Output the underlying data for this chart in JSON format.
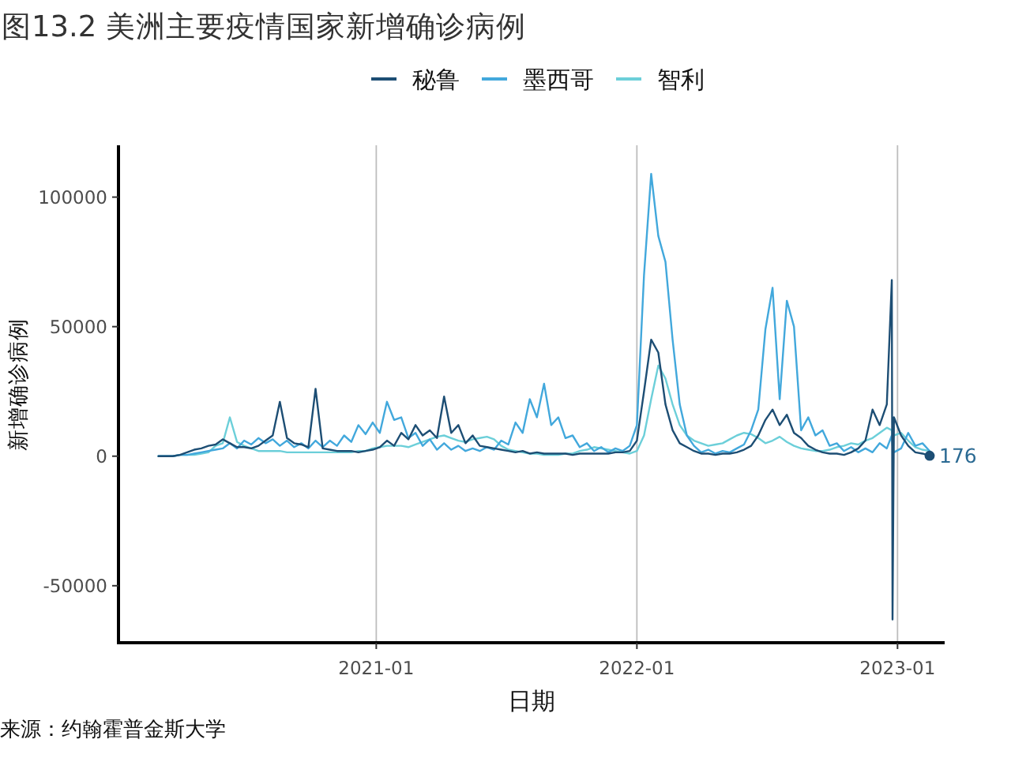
{
  "chart_data": {
    "type": "line",
    "title": "图13.2 美洲主要疫情国家新增确诊病例",
    "xlabel": "日期",
    "ylabel": "新增确诊病例",
    "x": [
      "2020-03-02",
      "2020-03-12",
      "2020-03-22",
      "2020-04-01",
      "2020-04-11",
      "2020-04-21",
      "2020-05-01",
      "2020-05-11",
      "2020-05-21",
      "2020-05-31",
      "2020-06-10",
      "2020-06-20",
      "2020-06-30",
      "2020-07-10",
      "2020-07-20",
      "2020-07-30",
      "2020-08-09",
      "2020-08-19",
      "2020-08-29",
      "2020-09-08",
      "2020-09-18",
      "2020-09-28",
      "2020-10-08",
      "2020-10-18",
      "2020-10-28",
      "2020-11-07",
      "2020-11-17",
      "2020-11-27",
      "2020-12-07",
      "2020-12-17",
      "2020-12-27",
      "2021-01-06",
      "2021-01-16",
      "2021-01-26",
      "2021-02-05",
      "2021-02-15",
      "2021-02-25",
      "2021-03-07",
      "2021-03-17",
      "2021-03-27",
      "2021-04-06",
      "2021-04-16",
      "2021-04-26",
      "2021-05-06",
      "2021-05-16",
      "2021-05-26",
      "2021-06-05",
      "2021-06-15",
      "2021-06-25",
      "2021-07-05",
      "2021-07-15",
      "2021-07-25",
      "2021-08-04",
      "2021-08-14",
      "2021-08-24",
      "2021-09-03",
      "2021-09-13",
      "2021-09-23",
      "2021-10-03",
      "2021-10-13",
      "2021-10-23",
      "2021-11-02",
      "2021-11-12",
      "2021-11-22",
      "2021-12-02",
      "2021-12-12",
      "2021-12-22",
      "2022-01-01",
      "2022-01-11",
      "2022-01-21",
      "2022-01-31",
      "2022-02-10",
      "2022-02-20",
      "2022-03-02",
      "2022-03-12",
      "2022-03-22",
      "2022-04-01",
      "2022-04-11",
      "2022-04-21",
      "2022-05-01",
      "2022-05-11",
      "2022-05-21",
      "2022-05-31",
      "2022-06-10",
      "2022-06-20",
      "2022-06-30",
      "2022-07-10",
      "2022-07-20",
      "2022-07-30",
      "2022-08-09",
      "2022-08-19",
      "2022-08-29",
      "2022-09-08",
      "2022-09-18",
      "2022-09-28",
      "2022-10-08",
      "2022-10-18",
      "2022-10-28",
      "2022-11-07",
      "2022-11-17",
      "2022-11-27",
      "2022-12-07",
      "2022-12-17",
      "2022-12-24",
      "2022-12-25",
      "2022-12-27",
      "2023-01-06",
      "2023-01-16",
      "2023-01-26",
      "2023-02-05",
      "2023-02-15"
    ],
    "series": [
      {
        "name": "秘鲁",
        "color": "#1d4e74",
        "values": [
          0,
          0,
          0,
          500,
          1500,
          2500,
          3000,
          4000,
          4500,
          6500,
          5000,
          3500,
          3500,
          3000,
          4000,
          6000,
          8000,
          21000,
          7000,
          5000,
          4500,
          3500,
          26000,
          3000,
          2500,
          2000,
          2000,
          2000,
          1500,
          2000,
          2500,
          3500,
          6000,
          4000,
          9000,
          6500,
          12000,
          8000,
          10000,
          7000,
          23000,
          9000,
          12000,
          5000,
          8000,
          4000,
          3500,
          3000,
          2500,
          2000,
          1500,
          2000,
          1000,
          1500,
          1000,
          1000,
          1000,
          1000,
          500,
          1000,
          1000,
          1000,
          1000,
          1000,
          1500,
          1500,
          2000,
          6000,
          25000,
          45000,
          40000,
          20000,
          10000,
          5000,
          3500,
          2000,
          1000,
          1000,
          500,
          1000,
          1000,
          1500,
          2500,
          4000,
          8000,
          14000,
          18000,
          12000,
          16000,
          9000,
          7000,
          4000,
          2500,
          1500,
          1000,
          1000,
          500,
          1500,
          3000,
          6000,
          18000,
          12000,
          20000,
          68000,
          -63000,
          15000,
          8000,
          4000,
          1500,
          1000,
          176
        ]
      },
      {
        "name": "墨西哥",
        "color": "#42a8dc",
        "values": [
          0,
          0,
          0,
          500,
          500,
          1000,
          1500,
          2000,
          2500,
          3000,
          5000,
          3000,
          6000,
          4500,
          7000,
          5000,
          6500,
          4000,
          6000,
          3500,
          5000,
          3000,
          6000,
          3500,
          6000,
          4000,
          8000,
          5500,
          12000,
          8500,
          13000,
          9000,
          21000,
          14000,
          15000,
          7000,
          9000,
          4000,
          6500,
          2500,
          5000,
          2500,
          4000,
          2000,
          3000,
          2000,
          3500,
          2500,
          6000,
          4500,
          13000,
          9000,
          22000,
          15000,
          28000,
          12000,
          15000,
          7000,
          8000,
          3500,
          5000,
          2000,
          3500,
          1500,
          3000,
          2000,
          4000,
          12000,
          70000,
          109000,
          85000,
          75000,
          45000,
          20000,
          8000,
          4000,
          1500,
          2500,
          1000,
          2000,
          1500,
          3000,
          4500,
          10000,
          18000,
          49000,
          65000,
          22000,
          60000,
          50000,
          10000,
          15000,
          8000,
          10000,
          4000,
          5000,
          2000,
          3500,
          1500,
          3000,
          1500,
          5000,
          3000,
          8000,
          4000,
          1500,
          3000,
          9000,
          4000,
          5000,
          2000
        ]
      },
      {
        "name": "智利",
        "color": "#6ccfd9",
        "values": [
          0,
          0,
          0,
          500,
          500,
          500,
          1000,
          1500,
          4000,
          5000,
          15000,
          5500,
          4000,
          3000,
          2000,
          2000,
          2000,
          2000,
          1500,
          1500,
          1500,
          1500,
          1500,
          1500,
          1500,
          1500,
          1500,
          1500,
          2000,
          2000,
          3000,
          3500,
          4000,
          4000,
          4000,
          3500,
          4500,
          5500,
          6500,
          7500,
          8000,
          7000,
          6000,
          5500,
          6500,
          7000,
          7500,
          6500,
          4000,
          2500,
          2000,
          1500,
          1000,
          1000,
          500,
          500,
          500,
          1000,
          1000,
          2000,
          2500,
          3500,
          3000,
          2500,
          2000,
          1500,
          1000,
          2000,
          8000,
          22000,
          35000,
          30000,
          20000,
          12000,
          8000,
          6000,
          5000,
          4000,
          4500,
          5000,
          6500,
          8000,
          9000,
          8500,
          7000,
          5000,
          6000,
          7500,
          5500,
          4000,
          3000,
          2500,
          2000,
          2000,
          2500,
          3500,
          4000,
          5000,
          4500,
          6000,
          7000,
          9000,
          11000,
          10000,
          6000,
          8000,
          9000,
          6000,
          3500,
          2500,
          2000
        ]
      },
      {
        "type": "scatter",
        "color": "#1d4e74",
        "x": [
          "2023-02-15"
        ],
        "values": [
          176
        ]
      }
    ],
    "xlim": [
      "2020-01-06",
      "2023-03-08"
    ],
    "ylim": [
      -72000,
      120000
    ],
    "xticks": [
      "2021-01",
      "2022-01",
      "2023-01"
    ],
    "yticks": [
      -50000,
      0,
      50000,
      100000
    ],
    "grid": "x",
    "legend": "top",
    "annotations": [
      {
        "text": "176",
        "x": "2023-02-15",
        "y": 176
      },
      "来源：约翰霍普金斯大学"
    ]
  }
}
